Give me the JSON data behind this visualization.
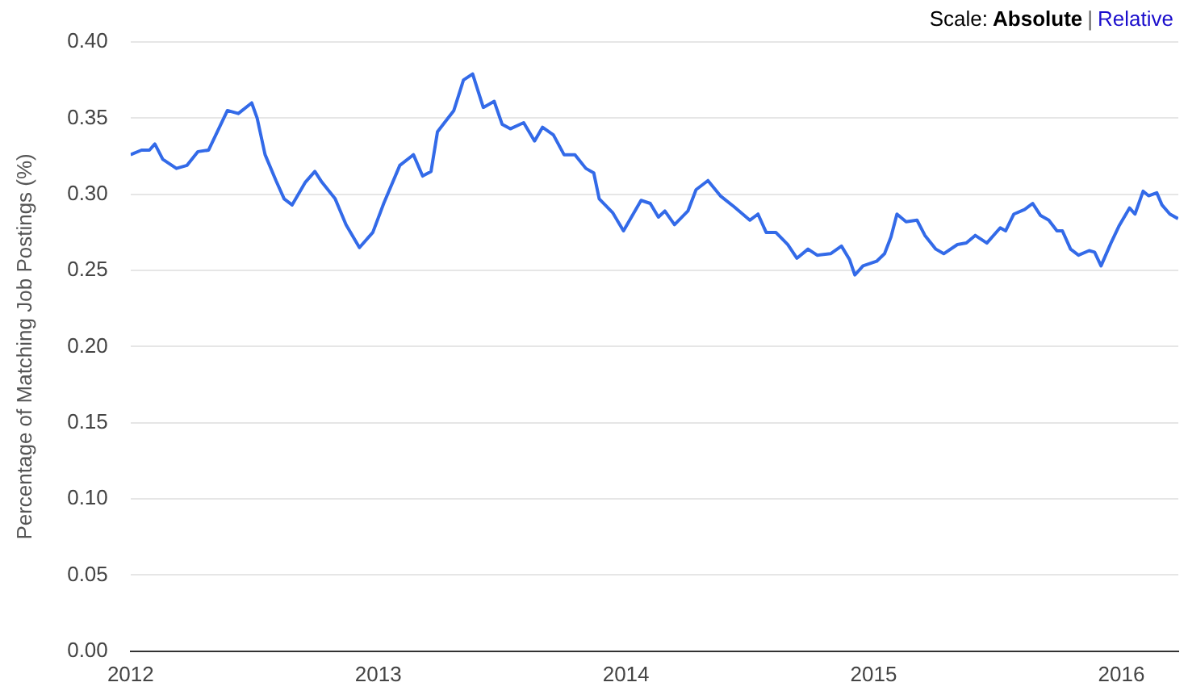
{
  "chart_data": {
    "type": "line",
    "ylabel": "Percentage of Matching Job Postings (%)",
    "annotations": [
      "Scale:",
      "Absolute",
      "|",
      "Relative"
    ],
    "xlim": [
      2012,
      2016.23
    ],
    "xticks": [
      2012,
      2013,
      2014,
      2015,
      2016
    ],
    "ylim": [
      0,
      0.4
    ],
    "yticks": [
      {
        "value": 0,
        "label": "0.00"
      },
      {
        "value": 0.05,
        "label": "0.05"
      },
      {
        "value": 0.1,
        "label": "0.10"
      },
      {
        "value": 0.15,
        "label": "0.15"
      },
      {
        "value": 0.2,
        "label": "0.20"
      },
      {
        "value": 0.25,
        "label": "0.25"
      },
      {
        "value": 0.3,
        "label": "0.30"
      },
      {
        "value": 0.35,
        "label": "0.35"
      },
      {
        "value": 0.4,
        "label": "0.40"
      }
    ],
    "grid": "y",
    "legend": false,
    "marker": "none",
    "line_style": "solid",
    "series": [
      {
        "color": "#336ae8",
        "x": [
          2012.0,
          2012.044,
          2012.076,
          2012.098,
          2012.13,
          2012.185,
          2012.228,
          2012.272,
          2012.315,
          2012.391,
          2012.435,
          2012.489,
          2012.511,
          2012.543,
          2012.587,
          2012.62,
          2012.652,
          2012.706,
          2012.744,
          2012.772,
          2012.826,
          2012.87,
          2012.924,
          2012.978,
          2013.022,
          2013.087,
          2013.142,
          2013.179,
          2013.213,
          2013.239,
          2013.305,
          2013.344,
          2013.381,
          2013.424,
          2013.468,
          2013.5,
          2013.533,
          2013.587,
          2013.631,
          2013.663,
          2013.707,
          2013.75,
          2013.794,
          2013.838,
          2013.87,
          2013.892,
          2013.946,
          2013.99,
          2014.022,
          2014.061,
          2014.098,
          2014.131,
          2014.157,
          2014.196,
          2014.25,
          2014.283,
          2014.331,
          2014.381,
          2014.435,
          2014.5,
          2014.533,
          2014.566,
          2014.605,
          2014.653,
          2014.69,
          2014.735,
          2014.772,
          2014.826,
          2014.87,
          2014.903,
          2014.924,
          2014.957,
          2015.012,
          2015.044,
          2015.07,
          2015.094,
          2015.131,
          2015.175,
          2015.207,
          2015.251,
          2015.283,
          2015.338,
          2015.374,
          2015.41,
          2015.457,
          2015.511,
          2015.533,
          2015.566,
          2015.609,
          2015.642,
          2015.674,
          2015.707,
          2015.74,
          2015.762,
          2015.795,
          2015.827,
          2015.87,
          2015.892,
          2015.918,
          2015.958,
          2015.99,
          2016.033,
          2016.055,
          2016.088,
          2016.11,
          2016.143,
          2016.164,
          2016.196,
          2016.229
        ],
        "values": [
          0.326,
          0.329,
          0.329,
          0.333,
          0.323,
          0.317,
          0.319,
          0.328,
          0.329,
          0.355,
          0.353,
          0.36,
          0.35,
          0.326,
          0.309,
          0.297,
          0.293,
          0.308,
          0.315,
          0.308,
          0.297,
          0.28,
          0.265,
          0.275,
          0.294,
          0.319,
          0.326,
          0.312,
          0.315,
          0.341,
          0.355,
          0.375,
          0.379,
          0.357,
          0.361,
          0.346,
          0.343,
          0.347,
          0.335,
          0.344,
          0.339,
          0.326,
          0.326,
          0.317,
          0.314,
          0.297,
          0.288,
          0.276,
          0.285,
          0.296,
          0.294,
          0.285,
          0.289,
          0.28,
          0.289,
          0.303,
          0.309,
          0.299,
          0.292,
          0.283,
          0.287,
          0.275,
          0.275,
          0.267,
          0.258,
          0.264,
          0.26,
          0.261,
          0.266,
          0.257,
          0.247,
          0.253,
          0.256,
          0.261,
          0.272,
          0.287,
          0.282,
          0.283,
          0.273,
          0.264,
          0.261,
          0.267,
          0.268,
          0.273,
          0.268,
          0.278,
          0.276,
          0.287,
          0.29,
          0.294,
          0.286,
          0.283,
          0.276,
          0.276,
          0.264,
          0.26,
          0.263,
          0.262,
          0.253,
          0.268,
          0.279,
          0.291,
          0.287,
          0.302,
          0.299,
          0.301,
          0.293,
          0.287,
          0.284
        ]
      }
    ]
  }
}
